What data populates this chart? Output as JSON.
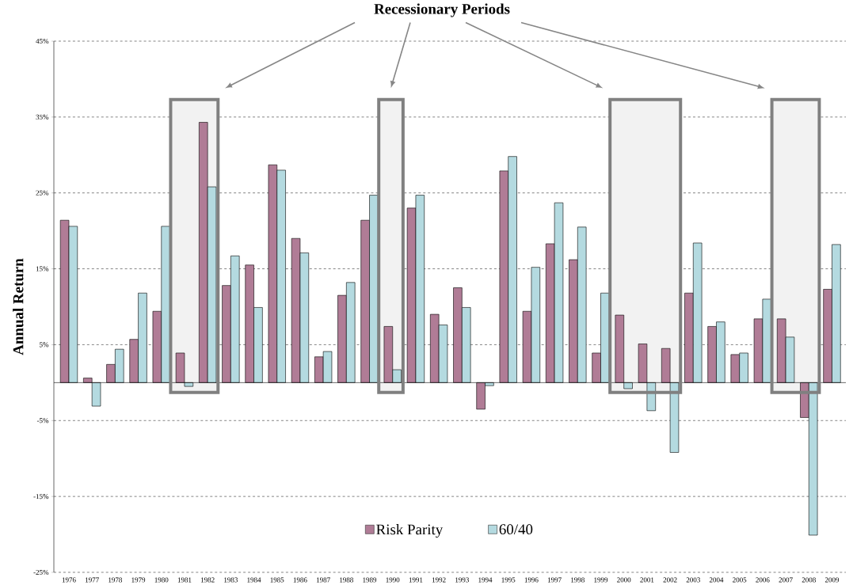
{
  "chart_data": {
    "type": "bar",
    "ylabel": "Annual Return",
    "categories": [
      "1976",
      "1977",
      "1978",
      "1979",
      "1980",
      "1981",
      "1982",
      "1983",
      "1984",
      "1985",
      "1986",
      "1987",
      "1988",
      "1989",
      "1990",
      "1991",
      "1992",
      "1993",
      "1994",
      "1995",
      "1996",
      "1997",
      "1998",
      "1999",
      "2000",
      "2001",
      "2002",
      "2003",
      "2004",
      "2005",
      "2006",
      "2007",
      "2008",
      "2009"
    ],
    "series": [
      {
        "name": "Risk Parity",
        "color": "#b07c96",
        "values": [
          21.4,
          0.6,
          2.4,
          5.7,
          9.4,
          3.9,
          34.3,
          12.8,
          15.5,
          28.7,
          19.0,
          3.4,
          11.5,
          21.4,
          7.4,
          23.0,
          9.0,
          12.5,
          -3.5,
          27.9,
          9.4,
          18.3,
          16.2,
          3.9,
          8.9,
          5.1,
          4.5,
          11.8,
          7.4,
          3.7,
          8.4,
          8.4,
          -4.6,
          12.3
        ]
      },
      {
        "name": "60/40",
        "color": "#b4dae0",
        "values": [
          20.6,
          -3.1,
          4.4,
          11.8,
          20.6,
          -0.5,
          25.8,
          16.7,
          9.9,
          28.0,
          17.1,
          4.1,
          13.2,
          24.7,
          1.7,
          24.7,
          7.6,
          9.9,
          -0.4,
          29.8,
          15.2,
          23.7,
          20.5,
          11.8,
          -0.8,
          -3.7,
          -9.2,
          18.4,
          8.0,
          3.9,
          11.0,
          6.0,
          -20.1,
          18.2
        ]
      }
    ],
    "ylim": [
      -25,
      45
    ],
    "yticks": [
      {
        "value": -25,
        "label": "-25%"
      },
      {
        "value": -15,
        "label": "-15%"
      },
      {
        "value": -5,
        "label": "-5%"
      },
      {
        "value": 5,
        "label": "5%"
      },
      {
        "value": 15,
        "label": "15%"
      },
      {
        "value": 25,
        "label": "25%"
      },
      {
        "value": 35,
        "label": "35%"
      },
      {
        "value": 45,
        "label": "45%"
      }
    ],
    "grid": "y",
    "legend": "bottom",
    "bands": [
      {
        "axis": "x",
        "from": "1981",
        "to": "1982",
        "color": "#f2f2f2"
      },
      {
        "axis": "x",
        "from": "1990",
        "to": "1990",
        "color": "#f2f2f2"
      },
      {
        "axis": "x",
        "from": "2000",
        "to": "2002",
        "color": "#f2f2f2"
      },
      {
        "axis": "x",
        "from": "2007",
        "to": "2008",
        "color": "#f2f2f2"
      }
    ],
    "annotations": [
      "Recessionary Periods"
    ]
  }
}
